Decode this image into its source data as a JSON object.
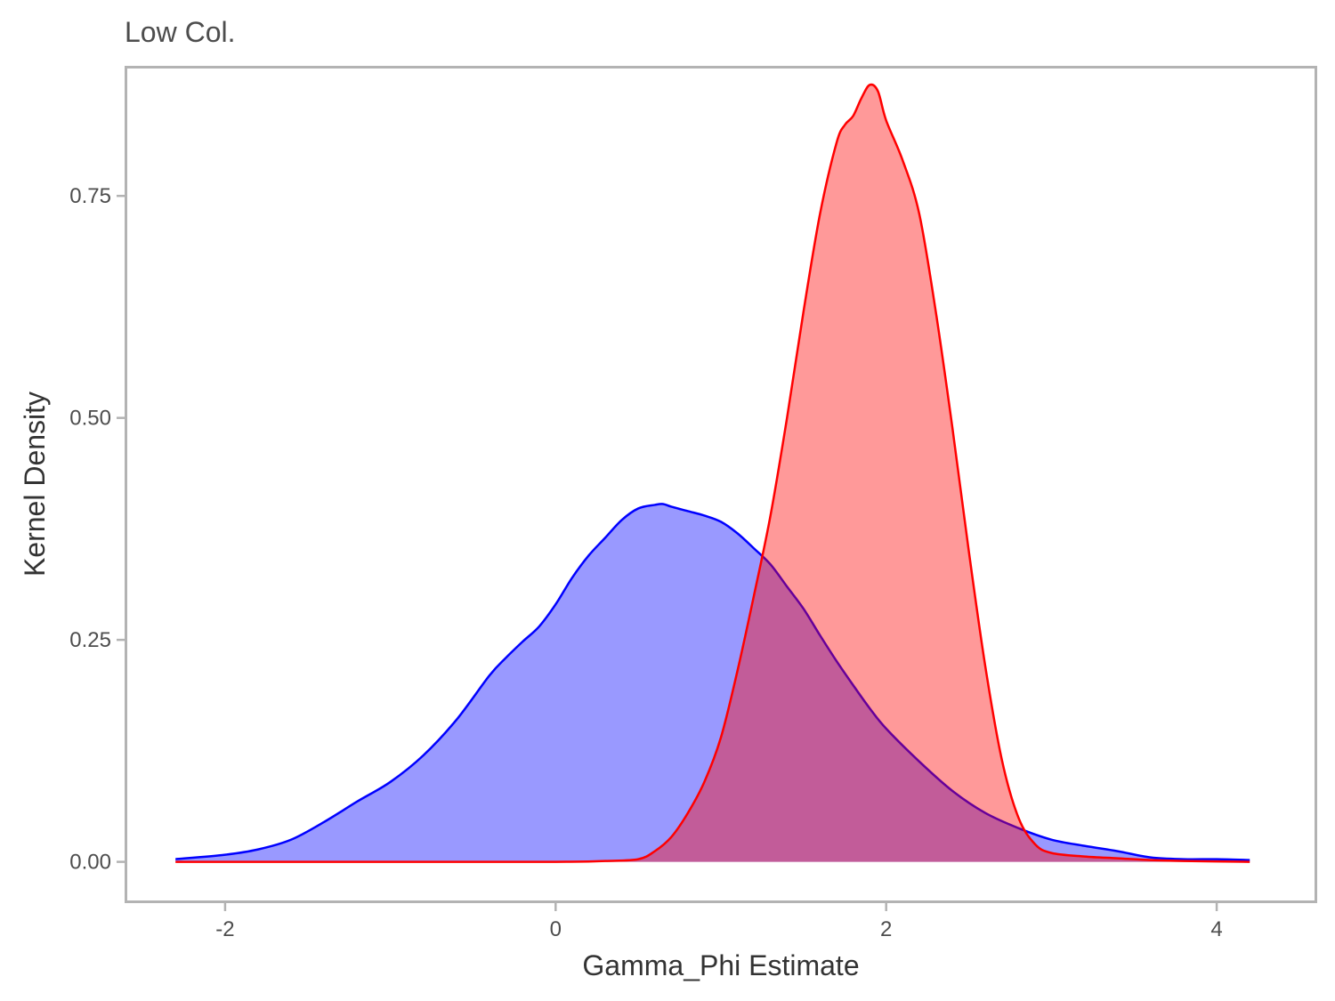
{
  "chart_data": {
    "type": "area",
    "title": "Low Col.",
    "xlabel": "Gamma_Phi Estimate",
    "ylabel": "Kernel Density",
    "xlim": [
      -2.6,
      4.6
    ],
    "ylim": [
      -0.045,
      0.895
    ],
    "x_ticks": [
      -2,
      0,
      2,
      4
    ],
    "x_tick_labels": [
      "-2",
      "0",
      "2",
      "4"
    ],
    "y_ticks": [
      0.0,
      0.25,
      0.5,
      0.75
    ],
    "y_tick_labels": [
      "0.00",
      "0.25",
      "0.50",
      "0.75"
    ],
    "grid": false,
    "legend": "none",
    "series": [
      {
        "color": "#0000ff",
        "fill": "#0000ff",
        "fill_opacity": 0.4,
        "x": [
          -2.3,
          -2.0,
          -1.8,
          -1.6,
          -1.4,
          -1.2,
          -1.0,
          -0.8,
          -0.6,
          -0.4,
          -0.3,
          -0.2,
          -0.1,
          0.0,
          0.1,
          0.2,
          0.3,
          0.4,
          0.5,
          0.6,
          0.65,
          0.7,
          0.8,
          0.9,
          1.0,
          1.1,
          1.2,
          1.3,
          1.4,
          1.5,
          1.6,
          1.7,
          1.8,
          1.9,
          2.0,
          2.2,
          2.4,
          2.6,
          2.8,
          3.0,
          3.2,
          3.4,
          3.6,
          3.8,
          4.0,
          4.2
        ],
        "y": [
          0.003,
          0.008,
          0.014,
          0.025,
          0.045,
          0.068,
          0.09,
          0.12,
          0.16,
          0.21,
          0.23,
          0.248,
          0.265,
          0.29,
          0.32,
          0.345,
          0.365,
          0.385,
          0.398,
          0.402,
          0.403,
          0.4,
          0.395,
          0.39,
          0.383,
          0.37,
          0.353,
          0.335,
          0.31,
          0.285,
          0.255,
          0.226,
          0.199,
          0.173,
          0.15,
          0.113,
          0.08,
          0.055,
          0.038,
          0.025,
          0.018,
          0.012,
          0.005,
          0.003,
          0.003,
          0.002
        ]
      },
      {
        "color": "#ff0000",
        "fill": "#ff0000",
        "fill_opacity": 0.4,
        "x": [
          -2.3,
          -1.0,
          0.0,
          0.3,
          0.5,
          0.6,
          0.7,
          0.8,
          0.9,
          1.0,
          1.1,
          1.2,
          1.3,
          1.4,
          1.5,
          1.6,
          1.7,
          1.75,
          1.8,
          1.85,
          1.9,
          1.95,
          2.0,
          2.1,
          2.2,
          2.3,
          2.4,
          2.5,
          2.6,
          2.7,
          2.8,
          2.9,
          3.0,
          3.2,
          3.4,
          3.6,
          3.8,
          4.2
        ],
        "y": [
          0.0,
          0.0,
          0.0,
          0.001,
          0.003,
          0.012,
          0.028,
          0.055,
          0.09,
          0.14,
          0.215,
          0.3,
          0.39,
          0.5,
          0.62,
          0.73,
          0.81,
          0.83,
          0.84,
          0.86,
          0.875,
          0.868,
          0.835,
          0.79,
          0.73,
          0.62,
          0.49,
          0.35,
          0.22,
          0.115,
          0.05,
          0.02,
          0.01,
          0.006,
          0.004,
          0.002,
          0.001,
          0.0
        ]
      }
    ]
  }
}
